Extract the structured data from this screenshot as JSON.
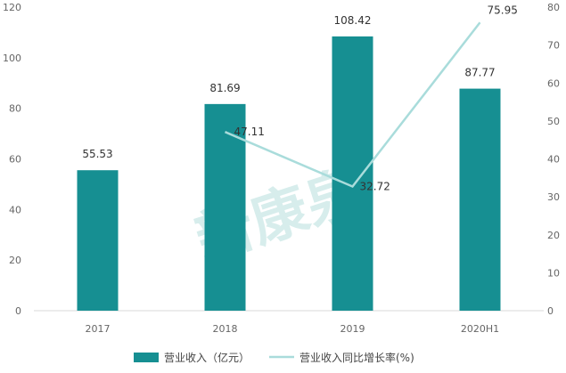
{
  "colors": {
    "bar": "#168f92",
    "line": "#a9dcdb",
    "axis": "#d9d9d9",
    "tick_text": "#666666",
    "watermark": "#b8e0dd"
  },
  "watermark_text": "新康泉",
  "chart_data": {
    "type": "bar",
    "categories": [
      "2017",
      "2018",
      "2019",
      "2020H1"
    ],
    "series": [
      {
        "name": "营业收入（亿元）",
        "type": "bar",
        "axis": "left",
        "values": [
          55.53,
          81.69,
          108.42,
          87.77
        ],
        "labels": [
          "55.53",
          "81.69",
          "108.42",
          "87.77"
        ]
      },
      {
        "name": "营业收入同比增长率(%)",
        "type": "line",
        "axis": "right",
        "values": [
          null,
          47.11,
          32.72,
          75.95
        ],
        "labels": [
          "",
          "47.11",
          "32.72",
          "75.95"
        ]
      }
    ],
    "y_left": {
      "min": 0,
      "max": 120,
      "ticks": [
        "0",
        "20",
        "40",
        "60",
        "80",
        "100",
        "120"
      ]
    },
    "y_right": {
      "min": 0,
      "max": 80,
      "ticks": [
        "0",
        "10",
        "20",
        "30",
        "40",
        "50",
        "60",
        "70",
        "80"
      ]
    },
    "legend_position": "bottom"
  }
}
